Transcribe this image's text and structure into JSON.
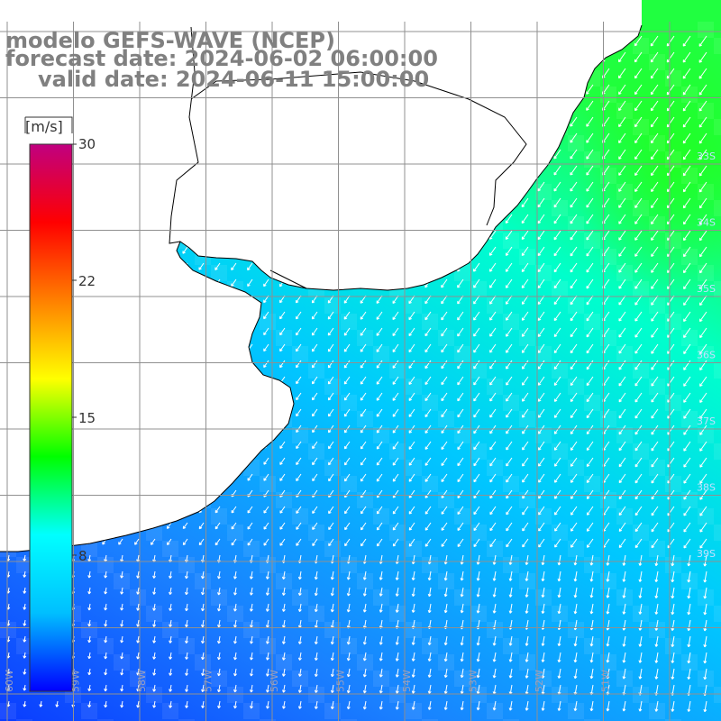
{
  "title": {
    "line1": "modelo GEFS-WAVE (NCEP)",
    "line2": "forecast date: 2024-06-02 06:00:00",
    "line3": "valid date: 2024-06-11 15:00:00"
  },
  "colorbar": {
    "unit": "[m/s]",
    "ticks": [
      "30",
      "22",
      "15",
      "8"
    ],
    "range": [
      0,
      30
    ],
    "colors": [
      "#0000ff",
      "#00bfff",
      "#00ffff",
      "#00ff00",
      "#ffff00",
      "#ff8000",
      "#ff0000",
      "#c00080"
    ]
  },
  "grid": {
    "longitude_labels": [
      "60W",
      "59W",
      "58W",
      "57W",
      "56W",
      "55W",
      "54W",
      "53W",
      "52W",
      "51W"
    ],
    "latitude_labels": [
      "33S",
      "34S",
      "35S",
      "36S",
      "37S",
      "38S",
      "39S"
    ]
  },
  "colors": {
    "land": "#ffffff",
    "grid_line": "#909090",
    "coast": "#000000",
    "arrow": "#ffffff",
    "title_text": "#808080"
  }
}
